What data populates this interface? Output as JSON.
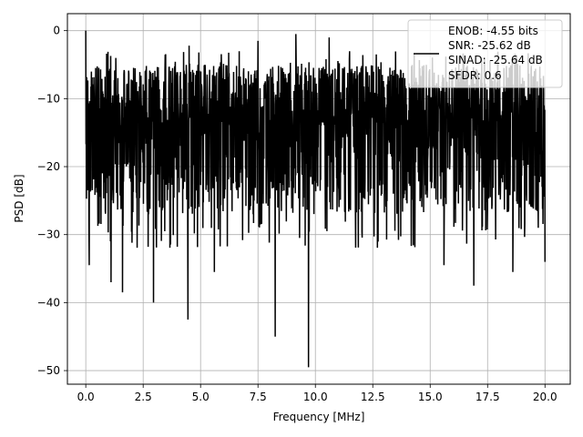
{
  "chart_data": {
    "type": "line",
    "xlabel": "Frequency [MHz]",
    "ylabel": "PSD [dB]",
    "xlim": [
      -0.8,
      21.1
    ],
    "ylim": [
      -52,
      2.5
    ],
    "xticks": [
      0.0,
      2.5,
      5.0,
      7.5,
      10.0,
      12.5,
      15.0,
      17.5,
      20.0
    ],
    "xtick_labels": [
      "0.0",
      "2.5",
      "5.0",
      "7.5",
      "10.0",
      "12.5",
      "15.0",
      "17.5",
      "20.0"
    ],
    "yticks": [
      0,
      -10,
      -20,
      -30,
      -40,
      -50
    ],
    "ytick_labels": [
      "0",
      "−10",
      "−20",
      "−30",
      "−40",
      "−50"
    ],
    "grid": true,
    "legend_placement": "top-right",
    "legend_lines": [
      "ENOB: -4.55 bits",
      "SNR: -25.62 dB",
      "SINAD: -25.64 dB",
      "SFDR: 0.6"
    ],
    "line_color": "#000000",
    "series": [
      {
        "x_range": [
          0,
          20
        ],
        "n_points": 2048,
        "noise_floor_band": [
          -27,
          -5
        ],
        "notable_points": [
          {
            "x": 0.0,
            "y": 0.0
          },
          {
            "x": 0.15,
            "y": -34.5
          },
          {
            "x": 1.1,
            "y": -37.0
          },
          {
            "x": 1.6,
            "y": -38.5
          },
          {
            "x": 2.95,
            "y": -40.0
          },
          {
            "x": 4.45,
            "y": -42.5
          },
          {
            "x": 5.6,
            "y": -35.5
          },
          {
            "x": 8.25,
            "y": -45.0
          },
          {
            "x": 9.7,
            "y": -49.5
          },
          {
            "x": 15.6,
            "y": -34.5
          },
          {
            "x": 16.9,
            "y": -37.5
          },
          {
            "x": 18.6,
            "y": -35.5
          },
          {
            "x": 20.0,
            "y": -34.0
          },
          {
            "x": 9.15,
            "y": -0.5
          },
          {
            "x": 10.6,
            "y": -1.0
          },
          {
            "x": 7.5,
            "y": -1.5
          },
          {
            "x": 4.5,
            "y": -2.2
          }
        ]
      }
    ]
  }
}
